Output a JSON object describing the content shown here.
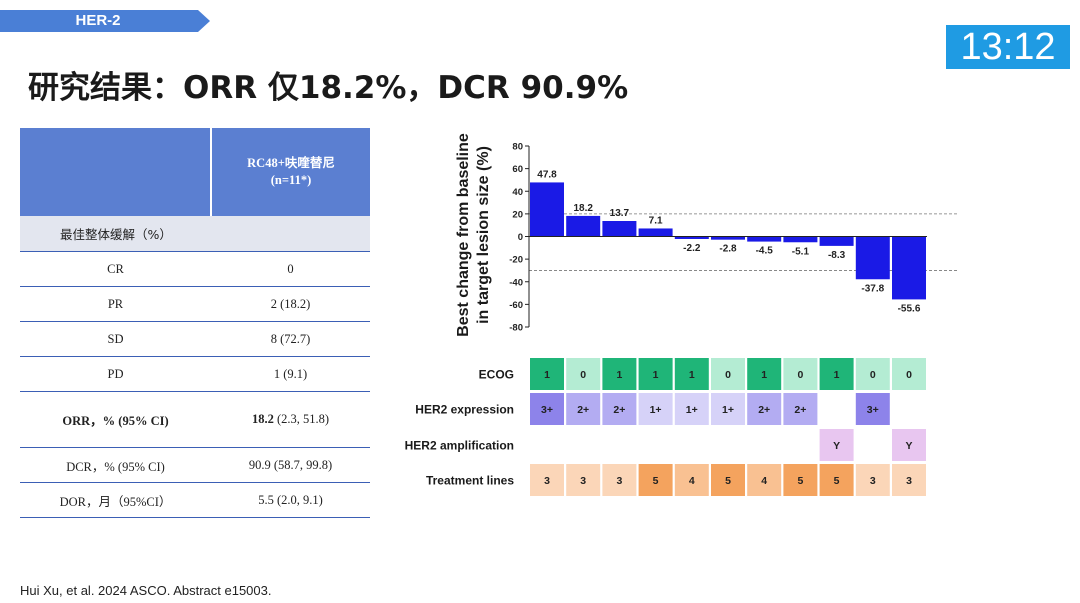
{
  "header": {
    "tag": "HER-2",
    "timer": "13:12"
  },
  "title": "研究结果：ORR 仅18.2%，DCR 90.9%",
  "table": {
    "col_header": "RC48+呋喹替尼",
    "col_subheader": "(n=11*)",
    "section": "最佳整体缓解（%）",
    "rows": [
      {
        "label": "CR",
        "value": "0"
      },
      {
        "label": "PR",
        "value": "2 (18.2)"
      },
      {
        "label": "SD",
        "value": "8 (72.7)"
      },
      {
        "label": "PD",
        "value": "1 (9.1)"
      }
    ],
    "orr": {
      "label": "ORR，% (95% CI)",
      "value_bold": "18.2",
      "value_rest": " (2.3, 51.8)"
    },
    "dcr": {
      "label": "DCR，% (95% CI)",
      "value": "90.9  (58.7, 99.8)"
    },
    "dor": {
      "label": "DOR，月（95%CI）",
      "value": "5.5 (2.0, 9.1)"
    }
  },
  "chart_data": {
    "type": "bar",
    "ylabel_line1": "Best change from baseline",
    "ylabel_line2": "in target lesion size (%)",
    "ylim": [
      -80,
      80
    ],
    "yticks": [
      "80",
      "60",
      "40",
      "20",
      "0",
      "-20",
      "-40",
      "-60",
      "-80"
    ],
    "ytick_values": [
      80,
      60,
      40,
      20,
      0,
      -20,
      -40,
      -60,
      -80
    ],
    "reference_lines": [
      20,
      -30
    ],
    "values": [
      47.8,
      18.2,
      13.7,
      7.1,
      -2.2,
      -2.8,
      -4.5,
      -5.1,
      -8.3,
      -37.8,
      -55.6
    ],
    "value_labels": [
      "47.8",
      "18.2",
      "13.7",
      "7.1",
      "-2.2",
      "-2.8",
      "-4.5",
      "-5.1",
      "-8.3",
      "-37.8",
      "-55.6"
    ],
    "bar_color": "#1a1ae6",
    "annotation_rows": [
      {
        "name": "ECOG",
        "values": [
          "1",
          "0",
          "1",
          "1",
          "1",
          "0",
          "1",
          "0",
          "1",
          "0",
          "0"
        ],
        "colors": {
          "1": "#1fb578",
          "0": "#b4ecd3"
        }
      },
      {
        "name": "HER2 expression",
        "values": [
          "3+",
          "2+",
          "2+",
          "1+",
          "1+",
          "1+",
          "2+",
          "2+",
          "",
          "3+",
          ""
        ],
        "colors": {
          "3+": "#8d83ea",
          "2+": "#b3acf2",
          "1+": "#d6d2f8"
        }
      },
      {
        "name": "HER2 amplification",
        "values": [
          "",
          "",
          "",
          "",
          "",
          "",
          "",
          "",
          "Y",
          "",
          "Y"
        ],
        "colors": {
          "Y": "#e8c6f0"
        }
      },
      {
        "name": "Treatment lines",
        "values": [
          "3",
          "3",
          "3",
          "5",
          "4",
          "5",
          "4",
          "5",
          "5",
          "3",
          "3"
        ],
        "colors": {
          "3": "#fbd6b8",
          "4": "#f9c192",
          "5": "#f4a35e"
        }
      }
    ]
  },
  "citation": "Hui Xu,  et al. 2024 ASCO. Abstract  e15003."
}
